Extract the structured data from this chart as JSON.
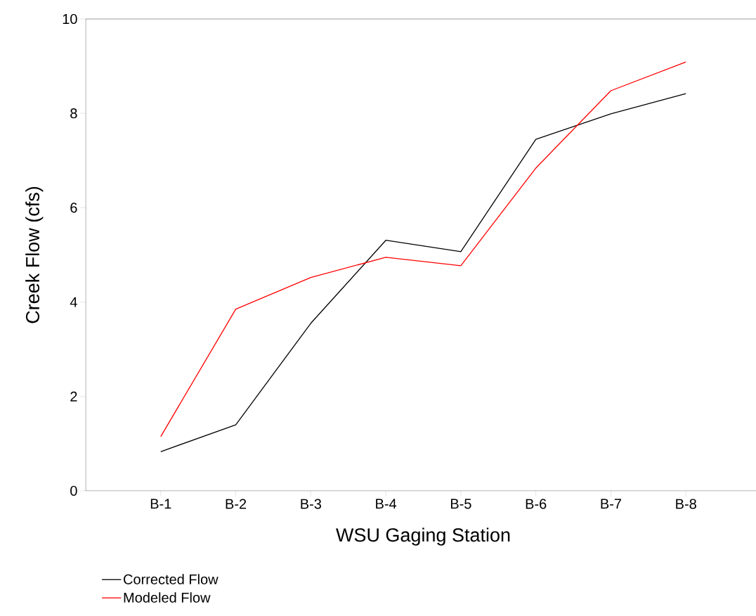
{
  "chart_data": {
    "type": "line",
    "xlabel": "WSU Gaging Station",
    "ylabel": "Creek Flow (cfs)",
    "categories": [
      "B-1",
      "B-2",
      "B-3",
      "B-4",
      "B-5",
      "B-6",
      "B-7",
      "B-8"
    ],
    "series": [
      {
        "name": "Corrected Flow",
        "color": "#000000",
        "values": [
          0.83,
          1.4,
          3.55,
          5.31,
          5.07,
          7.45,
          7.99,
          8.42
        ]
      },
      {
        "name": "Modeled Flow",
        "color": "#ff0000",
        "values": [
          1.15,
          3.85,
          4.52,
          4.95,
          4.77,
          6.84,
          8.48,
          9.09
        ]
      }
    ],
    "ylim": [
      0,
      10
    ],
    "yticks": [
      0,
      2,
      4,
      6,
      8,
      10
    ],
    "grid": false,
    "legend": "bottom left",
    "marker": "none",
    "line_style": "solid"
  }
}
